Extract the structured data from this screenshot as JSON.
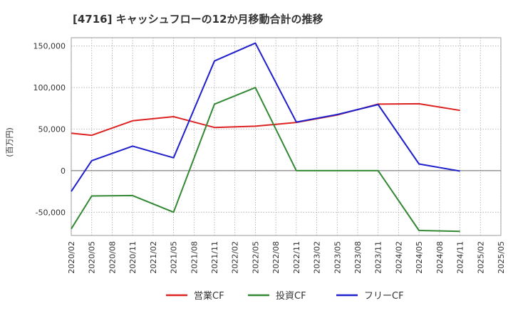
{
  "chart_data": {
    "type": "line",
    "title": "[4716]  キャッシュフローの12か月移動合計の推移",
    "ylabel": "(百万円)",
    "xlabel": "",
    "ylim": [
      -78000,
      160000
    ],
    "yticks": [
      -50000,
      0,
      50000,
      100000,
      150000
    ],
    "ytick_labels": [
      "-50,000",
      "0",
      "50,000",
      "100,000",
      "150,000"
    ],
    "categories": [
      "2020/02",
      "2020/05",
      "2020/08",
      "2020/11",
      "2021/02",
      "2021/05",
      "2021/08",
      "2021/11",
      "2022/02",
      "2022/05",
      "2022/08",
      "2022/11",
      "2023/02",
      "2023/05",
      "2023/08",
      "2023/11",
      "2024/02",
      "2024/05",
      "2024/08",
      "2024/11",
      "2025/02",
      "2025/05"
    ],
    "grid": true,
    "legend_position": "bottom",
    "series": [
      {
        "name": "営業CF",
        "color": "#dd2222",
        "x": [
          "2020/02",
          "2020/05",
          "2020/11",
          "2021/05",
          "2021/11",
          "2022/05",
          "2022/11",
          "2023/05",
          "2023/11",
          "2024/05",
          "2024/11"
        ],
        "values": [
          45000,
          42500,
          60000,
          65000,
          52000,
          53500,
          58000,
          67000,
          80000,
          80500,
          72500
        ]
      },
      {
        "name": "投資CF",
        "color": "#338833",
        "x": [
          "2020/02",
          "2020/05",
          "2020/11",
          "2021/05",
          "2021/11",
          "2022/05",
          "2022/11",
          "2023/05",
          "2023/11",
          "2024/05",
          "2024/11"
        ],
        "values": [
          -70000,
          -30500,
          -30000,
          -50000,
          80000,
          100000,
          0,
          0,
          0,
          -72000,
          -73000
        ]
      },
      {
        "name": "フリーCF",
        "color": "#1f1fcc",
        "x": [
          "2020/02",
          "2020/05",
          "2020/11",
          "2021/05",
          "2021/11",
          "2022/05",
          "2022/11",
          "2023/05",
          "2023/11",
          "2024/05",
          "2024/11"
        ],
        "values": [
          -25000,
          12000,
          29500,
          15500,
          132000,
          153500,
          58500,
          67500,
          79500,
          8000,
          -500
        ]
      }
    ]
  }
}
